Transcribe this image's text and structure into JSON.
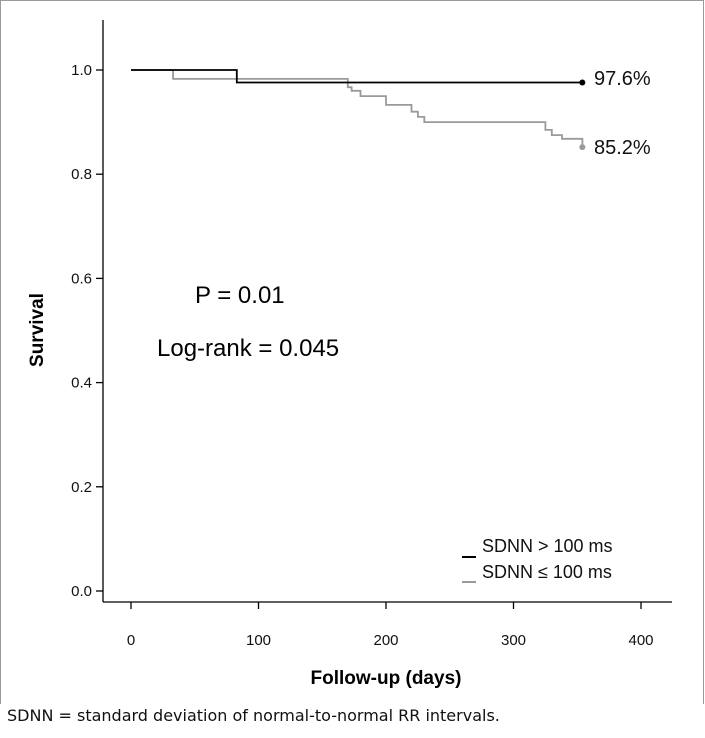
{
  "chart_data": {
    "type": "line",
    "subtype": "kaplan-meier step",
    "xlabel": "Follow-up (days)",
    "ylabel": "Survival",
    "xlim": [
      -20,
      420
    ],
    "ylim": [
      -0.02,
      1.05
    ],
    "xticks": [
      0,
      100,
      200,
      300,
      400
    ],
    "xtick_labels": [
      "0",
      "100",
      "200",
      "300",
      "400"
    ],
    "yticks": [
      0.0,
      0.2,
      0.4,
      0.6,
      0.8,
      1.0
    ],
    "ytick_labels": [
      "0.0",
      "0.2",
      "0.4",
      "0.6",
      "0.8",
      "1.0"
    ],
    "grid": false,
    "legend_placement": "bottom-right",
    "annotations": [
      "P = 0.01",
      "Log-rank = 0.045"
    ],
    "series": [
      {
        "name": "SDNN > 100 ms",
        "color": "#000000",
        "end_label": "97.6%",
        "x": [
          0,
          83,
          83,
          125,
          125,
          354
        ],
        "y": [
          1.0,
          1.0,
          0.976,
          0.976,
          0.976,
          0.976
        ]
      },
      {
        "name": "SDNN ≤ 100 ms",
        "color": "#9a9a9a",
        "end_label": "85.2%",
        "x": [
          0,
          33,
          33,
          170,
          170,
          173,
          173,
          180,
          180,
          200,
          200,
          220,
          220,
          225,
          225,
          230,
          230,
          325,
          325,
          330,
          330,
          338,
          338,
          354,
          354
        ],
        "y": [
          1.0,
          1.0,
          0.983,
          0.983,
          0.967,
          0.967,
          0.96,
          0.96,
          0.95,
          0.95,
          0.933,
          0.933,
          0.92,
          0.92,
          0.91,
          0.91,
          0.9,
          0.9,
          0.885,
          0.885,
          0.875,
          0.875,
          0.868,
          0.868,
          0.852
        ]
      }
    ]
  },
  "legend": {
    "item1": "SDNN > 100 ms",
    "item2": "SDNN ≤ 100 ms"
  },
  "annotations": {
    "p_value": "P = 0.01",
    "log_rank": "Log-rank = 0.045"
  },
  "end_labels": {
    "series1": "97.6%",
    "series2": "85.2%"
  },
  "caption": "SDNN = standard deviation of normal-to-normal RR intervals."
}
